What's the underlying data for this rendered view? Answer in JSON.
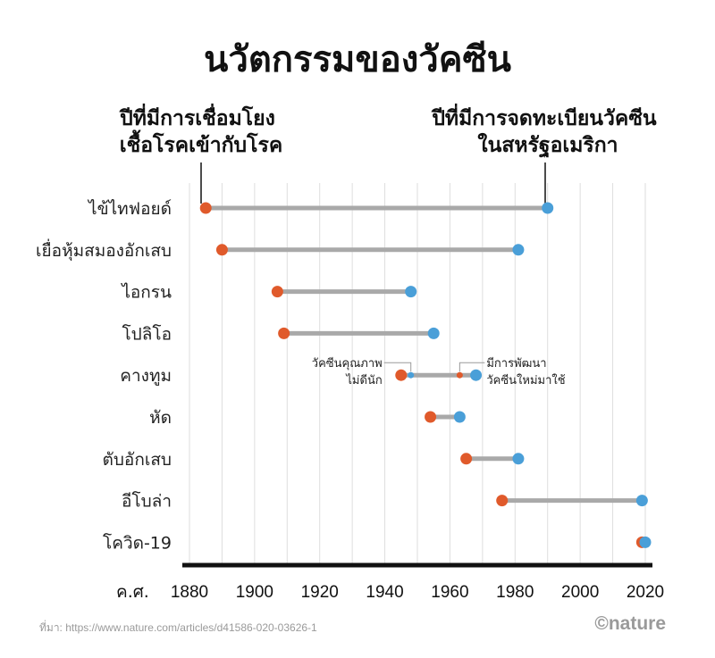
{
  "chart_data": {
    "type": "dumbbell",
    "title": "นวัตกรรมของวัคซีน",
    "start_label": "ปีที่มีการเชื่อมโยง\nเชื้อโรคเข้ากับโรค",
    "end_label": "ปีที่มีการจดทะเบียนวัคซีน\nในสหรัฐอเมริกา",
    "x_axis": {
      "prefix": "ค.ศ.",
      "range": [
        1880,
        2020
      ],
      "ticks": [
        1880,
        1900,
        1920,
        1940,
        1960,
        1980,
        2000,
        2020
      ],
      "gridlines": [
        1880,
        1890,
        1900,
        1910,
        1920,
        1930,
        1940,
        1950,
        1960,
        1970,
        1980,
        1990,
        2000,
        2010,
        2020
      ]
    },
    "colors": {
      "start": "#e05a2b",
      "end": "#4a9fd8",
      "bar": "#a9a9a9",
      "grid": "#dedede",
      "axis": "#111111"
    },
    "diseases": [
      {
        "name": "ไข้ไทฟอยด์",
        "start": 1885,
        "end": 1990
      },
      {
        "name": "เยื่อหุ้มสมองอักเสบ",
        "start": 1890,
        "end": 1981
      },
      {
        "name": "ไอกรน",
        "start": 1907,
        "end": 1948
      },
      {
        "name": "โปลิโอ",
        "start": 1909,
        "end": 1955
      },
      {
        "name": "คางทูม",
        "start": 1945,
        "end": 1968,
        "mid_points": [
          {
            "year": 1948,
            "kind": "end"
          },
          {
            "year": 1963,
            "kind": "start"
          }
        ]
      },
      {
        "name": "หัด",
        "start": 1954,
        "end": 1963
      },
      {
        "name": "ตับอักเสบ",
        "start": 1965,
        "end": 1981
      },
      {
        "name": "อีโบล่า",
        "start": 1976,
        "end": 2019
      },
      {
        "name": "โควิด-19",
        "start": 2019,
        "end": 2020
      }
    ],
    "annotations": [
      {
        "text": "วัคซีนคุณภาพ\nไม่ดีนัก",
        "year": 1948,
        "row": 4
      },
      {
        "text": "มีการพัฒนา\nวัคซีนใหม่มาใช้",
        "year": 1963,
        "row": 4
      }
    ]
  },
  "source": "ที่มา: https://www.nature.com/articles/d41586-020-03626-1",
  "brand": "©nature"
}
